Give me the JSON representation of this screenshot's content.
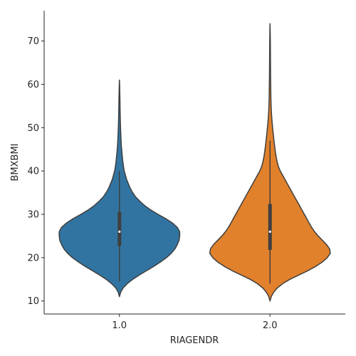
{
  "chart_data": {
    "type": "violin",
    "title": "",
    "xlabel": "RIAGENDR",
    "ylabel": "BMXBMI",
    "categories": [
      "1.0",
      "2.0"
    ],
    "ylim": [
      7,
      77
    ],
    "yticks": [
      10,
      20,
      30,
      40,
      50,
      60,
      70
    ],
    "grid": false,
    "legend": "none",
    "series": [
      {
        "category": "1.0",
        "color": "#3274a1",
        "min": 14.5,
        "q1": 22.7,
        "median": 26.0,
        "q3": 30.6,
        "whisker_low": 14.5,
        "whisker_high": 40.0,
        "density": [
          [
            11.0,
            0.0
          ],
          [
            12.0,
            0.02
          ],
          [
            13.0,
            0.06
          ],
          [
            14.0,
            0.13
          ],
          [
            15.0,
            0.22
          ],
          [
            16.0,
            0.33
          ],
          [
            17.0,
            0.45
          ],
          [
            18.0,
            0.57
          ],
          [
            19.0,
            0.68
          ],
          [
            20.0,
            0.78
          ],
          [
            21.0,
            0.86
          ],
          [
            22.0,
            0.92
          ],
          [
            23.0,
            0.96
          ],
          [
            24.0,
            0.99
          ],
          [
            25.0,
            1.0
          ],
          [
            26.0,
            1.0
          ],
          [
            27.0,
            0.96
          ],
          [
            28.0,
            0.88
          ],
          [
            29.0,
            0.77
          ],
          [
            30.0,
            0.64
          ],
          [
            31.0,
            0.52
          ],
          [
            32.0,
            0.42
          ],
          [
            33.0,
            0.34
          ],
          [
            34.0,
            0.27
          ],
          [
            35.0,
            0.22
          ],
          [
            36.0,
            0.18
          ],
          [
            37.0,
            0.15
          ],
          [
            38.0,
            0.12
          ],
          [
            39.0,
            0.1
          ],
          [
            40.0,
            0.08
          ],
          [
            41.0,
            0.068
          ],
          [
            42.0,
            0.058
          ],
          [
            43.0,
            0.05
          ],
          [
            44.0,
            0.043
          ],
          [
            45.0,
            0.037
          ],
          [
            46.0,
            0.031
          ],
          [
            47.0,
            0.027
          ],
          [
            48.0,
            0.024
          ],
          [
            49.0,
            0.021
          ],
          [
            50.0,
            0.018
          ],
          [
            52.0,
            0.014
          ],
          [
            54.0,
            0.011
          ],
          [
            56.0,
            0.009
          ],
          [
            58.0,
            0.006
          ],
          [
            60.0,
            0.003
          ],
          [
            61.0,
            0.0
          ]
        ]
      },
      {
        "category": "2.0",
        "color": "#e1812c",
        "min": 14.0,
        "q1": 21.8,
        "median": 26.0,
        "q3": 32.4,
        "whisker_low": 14.0,
        "whisker_high": 47.0,
        "density": [
          [
            10.0,
            0.0
          ],
          [
            11.0,
            0.02
          ],
          [
            12.0,
            0.06
          ],
          [
            13.0,
            0.12
          ],
          [
            14.0,
            0.21
          ],
          [
            15.0,
            0.33
          ],
          [
            16.0,
            0.48
          ],
          [
            17.0,
            0.63
          ],
          [
            18.0,
            0.76
          ],
          [
            19.0,
            0.87
          ],
          [
            20.0,
            0.95
          ],
          [
            21.0,
            1.0
          ],
          [
            22.0,
            0.99
          ],
          [
            23.0,
            0.94
          ],
          [
            24.0,
            0.87
          ],
          [
            25.0,
            0.8
          ],
          [
            26.0,
            0.74
          ],
          [
            27.0,
            0.69
          ],
          [
            28.0,
            0.65
          ],
          [
            29.0,
            0.61
          ],
          [
            30.0,
            0.57
          ],
          [
            31.0,
            0.53
          ],
          [
            32.0,
            0.49
          ],
          [
            33.0,
            0.45
          ],
          [
            34.0,
            0.41
          ],
          [
            35.0,
            0.37
          ],
          [
            36.0,
            0.33
          ],
          [
            37.0,
            0.29
          ],
          [
            38.0,
            0.25
          ],
          [
            39.0,
            0.21
          ],
          [
            40.0,
            0.17
          ],
          [
            41.0,
            0.14
          ],
          [
            42.0,
            0.12
          ],
          [
            43.0,
            0.105
          ],
          [
            44.0,
            0.093
          ],
          [
            45.0,
            0.083
          ],
          [
            46.0,
            0.074
          ],
          [
            47.0,
            0.066
          ],
          [
            48.0,
            0.058
          ],
          [
            49.0,
            0.05
          ],
          [
            50.0,
            0.043
          ],
          [
            52.0,
            0.03
          ],
          [
            54.0,
            0.021
          ],
          [
            56.0,
            0.016
          ],
          [
            58.0,
            0.013
          ],
          [
            60.0,
            0.011
          ],
          [
            62.0,
            0.009
          ],
          [
            64.0,
            0.008
          ],
          [
            66.0,
            0.007
          ],
          [
            68.0,
            0.006
          ],
          [
            70.0,
            0.005
          ],
          [
            72.0,
            0.003
          ],
          [
            74.0,
            0.0
          ]
        ]
      }
    ],
    "inner_box_color": "#3f3f3f",
    "outline_color": "#3f3f3f",
    "median_color": "#ffffff"
  }
}
